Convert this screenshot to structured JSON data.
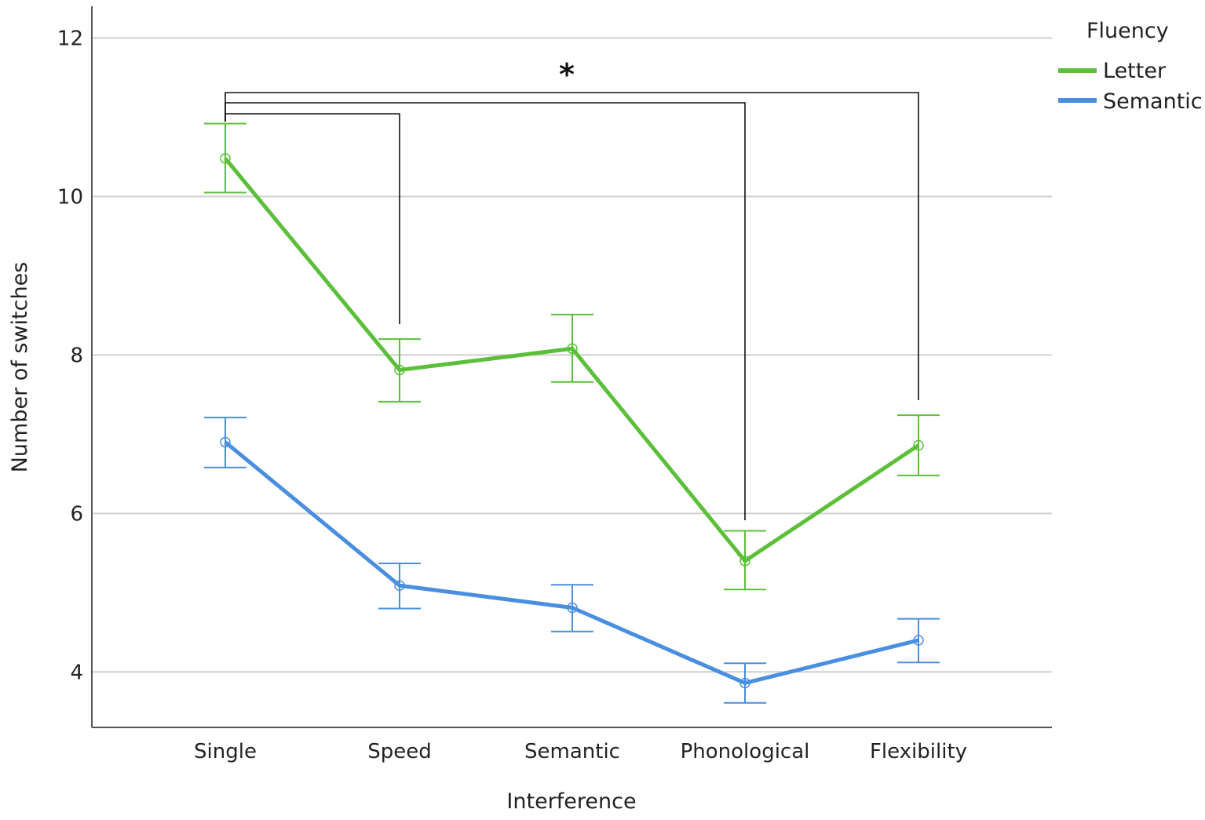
{
  "chart_data": {
    "type": "line",
    "xlabel": "Interference",
    "ylabel": "Number of switches",
    "categories": [
      "Single",
      "Speed",
      "Semantic",
      "Phonological",
      "Flexibility"
    ],
    "ylim": [
      3.3,
      12.4
    ],
    "yticks": [
      4,
      6,
      8,
      10,
      12
    ],
    "grid": "horizontal",
    "legend": {
      "title": "Fluency",
      "position": "top-right"
    },
    "series": [
      {
        "name": "Letter",
        "color": "#5BBF3A",
        "values": [
          10.48,
          7.81,
          8.08,
          5.4,
          6.86
        ],
        "error_low": [
          10.05,
          7.41,
          7.66,
          5.04,
          6.48
        ],
        "error_high": [
          10.92,
          8.2,
          8.51,
          5.78,
          7.24
        ]
      },
      {
        "name": "Semantic",
        "color": "#4A8EDF",
        "values": [
          6.9,
          5.09,
          4.81,
          3.86,
          4.4
        ],
        "error_low": [
          6.58,
          4.8,
          4.51,
          3.61,
          4.12
        ],
        "error_high": [
          7.21,
          5.37,
          5.1,
          4.11,
          4.67
        ]
      }
    ],
    "significance": {
      "symbol": "*",
      "from": "Single",
      "to": [
        "Speed",
        "Phonological",
        "Flexibility"
      ]
    }
  }
}
